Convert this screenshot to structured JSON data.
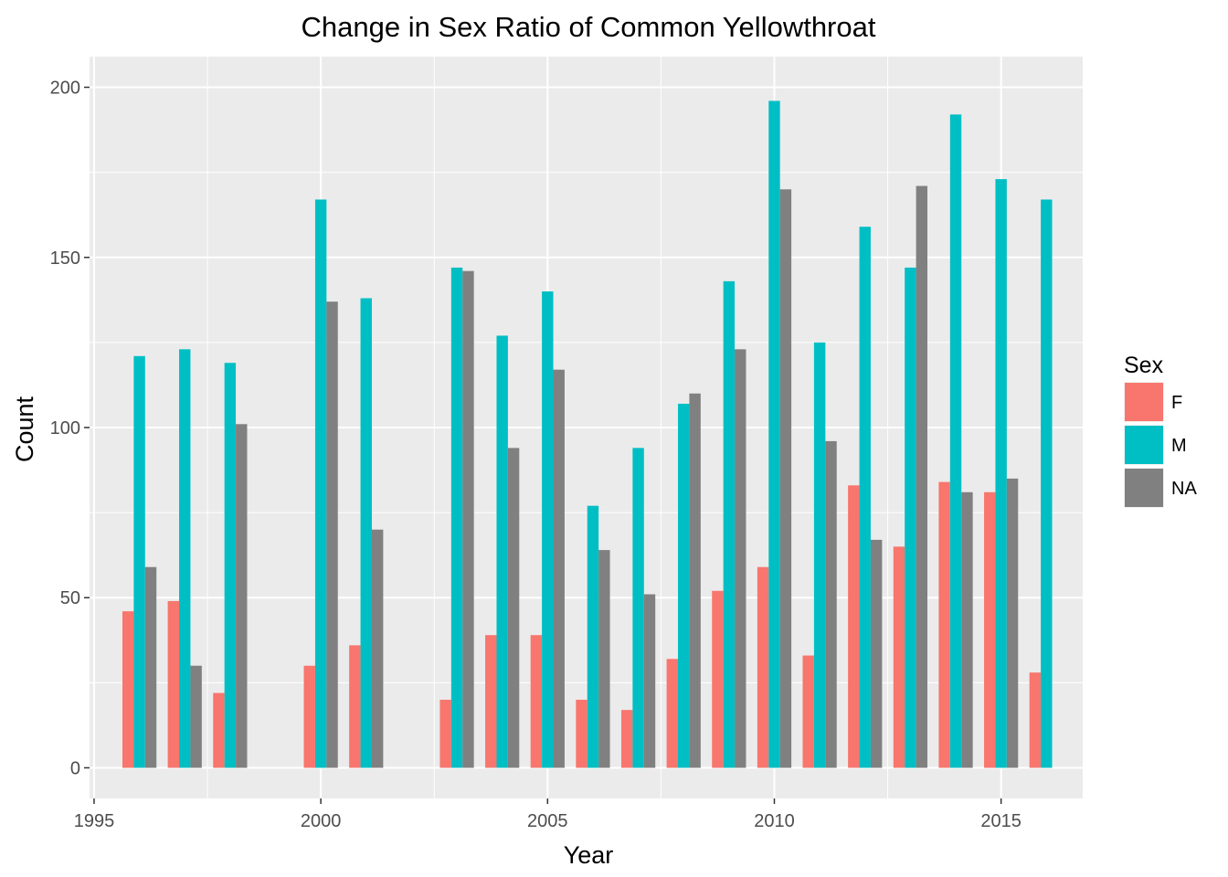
{
  "chart_data": {
    "type": "bar",
    "title": "Change in Sex Ratio of Common Yellowthroat",
    "xlabel": "Year",
    "ylabel": "Count",
    "xlim": [
      1994.9,
      2016.8
    ],
    "ylim": [
      -9,
      209
    ],
    "x_ticks": [
      1995,
      2000,
      2005,
      2010,
      2015
    ],
    "y_ticks": [
      0,
      50,
      100,
      150,
      200
    ],
    "grid": true,
    "legend": {
      "title": "Sex",
      "position": "right"
    },
    "series": [
      {
        "name": "F",
        "color": "#F8766D",
        "points": [
          [
            1996,
            46
          ],
          [
            1997,
            49
          ],
          [
            1998,
            22
          ],
          [
            2000,
            30
          ],
          [
            2001,
            36
          ],
          [
            2003,
            20
          ],
          [
            2004,
            39
          ],
          [
            2005,
            39
          ],
          [
            2006,
            20
          ],
          [
            2007,
            17
          ],
          [
            2008,
            32
          ],
          [
            2009,
            52
          ],
          [
            2010,
            59
          ],
          [
            2011,
            33
          ],
          [
            2012,
            83
          ],
          [
            2013,
            65
          ],
          [
            2014,
            84
          ],
          [
            2015,
            81
          ],
          [
            2016,
            28
          ]
        ]
      },
      {
        "name": "M",
        "color": "#00BFC4",
        "points": [
          [
            1996,
            121
          ],
          [
            1997,
            123
          ],
          [
            1998,
            119
          ],
          [
            2000,
            167
          ],
          [
            2001,
            138
          ],
          [
            2003,
            147
          ],
          [
            2004,
            127
          ],
          [
            2005,
            140
          ],
          [
            2006,
            77
          ],
          [
            2007,
            94
          ],
          [
            2008,
            107
          ],
          [
            2009,
            143
          ],
          [
            2010,
            196
          ],
          [
            2011,
            125
          ],
          [
            2012,
            159
          ],
          [
            2013,
            147
          ],
          [
            2014,
            192
          ],
          [
            2015,
            173
          ],
          [
            2016,
            167
          ]
        ]
      },
      {
        "name": "NA",
        "color": "#808080",
        "points": [
          [
            1996,
            59
          ],
          [
            1997,
            30
          ],
          [
            1998,
            101
          ],
          [
            2000,
            137
          ],
          [
            2001,
            70
          ],
          [
            2003,
            146
          ],
          [
            2004,
            94
          ],
          [
            2005,
            117
          ],
          [
            2006,
            64
          ],
          [
            2007,
            51
          ],
          [
            2008,
            110
          ],
          [
            2009,
            123
          ],
          [
            2010,
            170
          ],
          [
            2011,
            96
          ],
          [
            2012,
            67
          ],
          [
            2013,
            171
          ],
          [
            2014,
            81
          ],
          [
            2015,
            85
          ]
        ]
      }
    ]
  }
}
